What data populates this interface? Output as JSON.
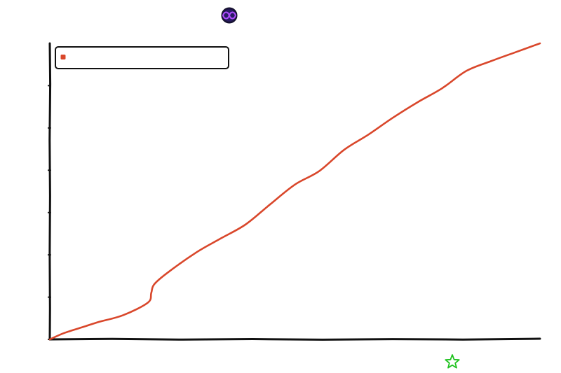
{
  "chart_data": {
    "type": "line",
    "title": "",
    "xlabel": "",
    "ylabel": "",
    "grid": false,
    "legend": "top-left",
    "xlim": [
      0,
      100
    ],
    "ylim": [
      0,
      100
    ],
    "series": [
      {
        "name": "",
        "color": "#d9472b",
        "x": [
          0,
          3,
          7,
          10,
          15,
          20,
          20.7,
          21.3,
          24,
          30,
          35,
          40,
          45,
          50,
          55,
          60,
          65,
          70,
          75,
          80,
          85,
          90,
          95,
          100
        ],
        "y": [
          0,
          2.2,
          4.3,
          5.9,
          8.2,
          12.4,
          15.7,
          18.6,
          22.5,
          29.5,
          34.2,
          38.9,
          45.7,
          52.3,
          56.9,
          64,
          69.2,
          74.9,
          80.1,
          84.8,
          90.7,
          94,
          97,
          100
        ]
      }
    ]
  },
  "decorations": {
    "top_badge_icon": "infinity-badge-icon",
    "top_badge_color": "#6a1bd6",
    "bottom_star_icon": "star-icon",
    "bottom_star_color": "#1ec21e"
  }
}
